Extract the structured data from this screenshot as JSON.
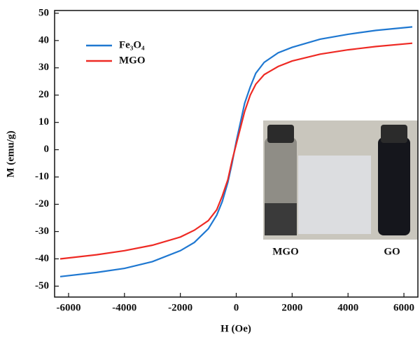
{
  "chart_data": {
    "type": "line",
    "xlabel": "H (Oe)",
    "ylabel": "M (emu/g)",
    "x": [
      -6300,
      -5000,
      -4000,
      -3000,
      -2000,
      -1500,
      -1000,
      -700,
      -500,
      -300,
      -150,
      0,
      150,
      300,
      500,
      700,
      1000,
      1500,
      2000,
      3000,
      4000,
      5000,
      6300
    ],
    "series": [
      {
        "name": "Fe₃O₄",
        "color": "#1f78d1",
        "values": [
          -46.5,
          -45,
          -43.5,
          -41,
          -37,
          -34,
          -29,
          -24,
          -19,
          -12,
          -5,
          3,
          10,
          17,
          23,
          28,
          32,
          35.5,
          37.5,
          40.5,
          42.3,
          43.7,
          45
        ]
      },
      {
        "name": "MGO",
        "color": "#ee2a24",
        "values": [
          -40,
          -38.5,
          -37,
          -35,
          -32,
          -29.5,
          -26,
          -22,
          -17,
          -11,
          -4,
          2,
          8,
          14,
          20,
          24,
          27.5,
          30.5,
          32.5,
          35,
          36.6,
          37.8,
          39
        ]
      }
    ],
    "xlim": [
      -6500,
      6500
    ],
    "xticks": [
      -6000,
      -4000,
      -2000,
      0,
      2000,
      4000,
      6000
    ],
    "ylim": [
      -54,
      51
    ],
    "yticks": [
      -50,
      -40,
      -30,
      -20,
      -10,
      0,
      10,
      20,
      30,
      40,
      50
    ],
    "legend": "upper left",
    "annotations": [
      "MGO",
      "GO"
    ]
  }
}
